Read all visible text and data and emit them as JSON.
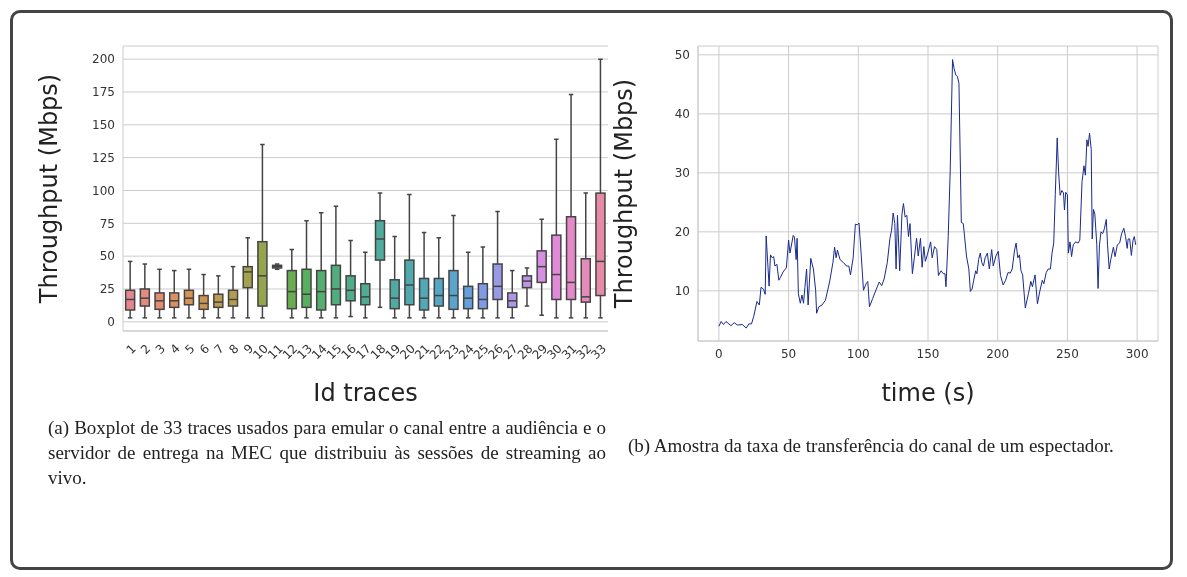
{
  "chart_data": [
    {
      "type": "box",
      "xlabel": "Id traces",
      "ylabel": "Throughput (Mbps)",
      "categories": [
        "1",
        "2",
        "3",
        "4",
        "5",
        "6",
        "7",
        "8",
        "9",
        "10",
        "11",
        "12",
        "13",
        "14",
        "15",
        "16",
        "17",
        "18",
        "19",
        "20",
        "21",
        "22",
        "23",
        "24",
        "25",
        "26",
        "27",
        "28",
        "29",
        "30",
        "31",
        "32",
        "33"
      ],
      "colors": [
        "#e5868f",
        "#e48a7e",
        "#e38c70",
        "#dc8f5f",
        "#d79356",
        "#cc9651",
        "#c09a50",
        "#b39e4f",
        "#a4a24e",
        "#94a54e",
        "#84a94f",
        "#6aad51",
        "#58af5d",
        "#54ae6e",
        "#52ad7c",
        "#50ad88",
        "#4fac92",
        "#4fab9b",
        "#4faaa4",
        "#50a9ad",
        "#52a8b7",
        "#55a6c2",
        "#5aa4ce",
        "#66a0dc",
        "#7f9ce3",
        "#999ae6",
        "#ad98e7",
        "#c095e6",
        "#d590e2",
        "#e18ad8",
        "#e589c9",
        "#e68aba",
        "#e68aa8"
      ],
      "boxes": [
        {
          "low": 3,
          "q1": 9,
          "median": 17,
          "q3": 24,
          "high": 46
        },
        {
          "low": 3,
          "q1": 12,
          "median": 18,
          "q3": 25,
          "high": 44
        },
        {
          "low": 3,
          "q1": 9.5,
          "median": 16,
          "q3": 22,
          "high": 40
        },
        {
          "low": 3,
          "q1": 11,
          "median": 16,
          "q3": 22,
          "high": 39
        },
        {
          "low": 3,
          "q1": 13,
          "median": 18,
          "q3": 24,
          "high": 40
        },
        {
          "low": 3,
          "q1": 9.5,
          "median": 14,
          "q3": 20,
          "high": 36
        },
        {
          "low": 3,
          "q1": 11,
          "median": 15,
          "q3": 21,
          "high": 35
        },
        {
          "low": 3,
          "q1": 12,
          "median": 17,
          "q3": 24,
          "high": 42
        },
        {
          "low": 3,
          "q1": 26,
          "median": 38,
          "q3": 42,
          "high": 64
        },
        {
          "low": 3,
          "q1": 12,
          "median": 35,
          "q3": 61,
          "high": 135
        },
        {
          "low": 40,
          "q1": 41,
          "median": 42,
          "q3": 43,
          "high": 44
        },
        {
          "low": 3,
          "q1": 10,
          "median": 23,
          "q3": 39,
          "high": 55
        },
        {
          "low": 3,
          "q1": 11,
          "median": 21,
          "q3": 40,
          "high": 77
        },
        {
          "low": 3,
          "q1": 9,
          "median": 23,
          "q3": 39,
          "high": 83
        },
        {
          "low": 3,
          "q1": 13,
          "median": 25,
          "q3": 43,
          "high": 88
        },
        {
          "low": 4,
          "q1": 16,
          "median": 24,
          "q3": 35,
          "high": 62
        },
        {
          "low": 3,
          "q1": 13,
          "median": 19,
          "q3": 29,
          "high": 53
        },
        {
          "low": 11,
          "q1": 47,
          "median": 63,
          "q3": 77,
          "high": 98
        },
        {
          "low": 3,
          "q1": 10,
          "median": 18,
          "q3": 32,
          "high": 65
        },
        {
          "low": 3,
          "q1": 13,
          "median": 28,
          "q3": 47,
          "high": 97
        },
        {
          "low": 3,
          "q1": 9,
          "median": 18,
          "q3": 33,
          "high": 68
        },
        {
          "low": 3,
          "q1": 12,
          "median": 20,
          "q3": 33,
          "high": 64
        },
        {
          "low": 3,
          "q1": 9.5,
          "median": 20,
          "q3": 39,
          "high": 81
        },
        {
          "low": 3,
          "q1": 10,
          "median": 18,
          "q3": 27,
          "high": 53
        },
        {
          "low": 3,
          "q1": 10,
          "median": 17,
          "q3": 29,
          "high": 57
        },
        {
          "low": 3,
          "q1": 17,
          "median": 27,
          "q3": 44,
          "high": 84
        },
        {
          "low": 3,
          "q1": 11,
          "median": 16,
          "q3": 22,
          "high": 39
        },
        {
          "low": 12,
          "q1": 26,
          "median": 31,
          "q3": 35,
          "high": 41
        },
        {
          "low": 5,
          "q1": 30,
          "median": 42,
          "q3": 54,
          "high": 78
        },
        {
          "low": 3,
          "q1": 17,
          "median": 36,
          "q3": 66,
          "high": 139
        },
        {
          "low": 3,
          "q1": 17,
          "median": 30,
          "q3": 80,
          "high": 173
        },
        {
          "low": 3,
          "q1": 15,
          "median": 19,
          "q3": 48,
          "high": 98
        },
        {
          "low": 3,
          "q1": 20,
          "median": 46,
          "q3": 98,
          "high": 200
        }
      ],
      "ylim": [
        -7,
        210
      ],
      "yticks": [
        0,
        25,
        50,
        75,
        100,
        125,
        150,
        175,
        200
      ],
      "grid": "y",
      "annotations": [
        "(a) Boxplot de 33 traces usados para emular o canal entre a audiência e o servidor de entrega na MEC que distribuiu às sessões de streaming ao vivo."
      ]
    },
    {
      "type": "line",
      "xlabel": "time (s)",
      "ylabel": "Throughput (Mbps)",
      "color": "#1a2a8c",
      "x": [
        0,
        1.6,
        3.3,
        5.1,
        8.6,
        11,
        13.3,
        16.8,
        19.6,
        21.5,
        23.4,
        25,
        27.3,
        29,
        30.2,
        32,
        33.2,
        33.9,
        36,
        37,
        38.3,
        39.3,
        40.2,
        41.6,
        43,
        44.2,
        46,
        48.4,
        50,
        51,
        53.3,
        54.2,
        55.4,
        56.1,
        57,
        58.4,
        59.6,
        60.7,
        61.7,
        62.9,
        64,
        65.9,
        67.8,
        69.4,
        70.1,
        71.7,
        74,
        76.4,
        79.4,
        81.8,
        83,
        84.1,
        85,
        86.9,
        89.3,
        91.6,
        93.2,
        94.4,
        96.3,
        97.9,
        99.3,
        100.5,
        102.1,
        103.7,
        105.6,
        106.8,
        108,
        110.3,
        112.1,
        115,
        116.8,
        118.5,
        120.8,
        122.7,
        123.9,
        125,
        126.2,
        127.1,
        128.1,
        129.7,
        131.3,
        132.4,
        133.6,
        134.8,
        136,
        137.1,
        138.8,
        140.2,
        141.8,
        143,
        144.6,
        145.8,
        147,
        148.1,
        149.5,
        151.9,
        153,
        154.7,
        156.3,
        157.5,
        159.4,
        161,
        162.2,
        162.9,
        164.5,
        165.9,
        167.6,
        168.7,
        169.9,
        171.1,
        172.2,
        173.9,
        175.3,
        176.2,
        177.6,
        179.3,
        180.4,
        181.6,
        182.8,
        184.2,
        185.1,
        186.3,
        187.5,
        188.6,
        189.8,
        191,
        192.6,
        194,
        195.7,
        196.8,
        198.7,
        200.4,
        202,
        203.9,
        205.7,
        207.4,
        209,
        210.4,
        212.1,
        213.2,
        214.4,
        215.6,
        216.7,
        217.9,
        219.8,
        222.1,
        223.8,
        224.9,
        226.8,
        228.5,
        230.1,
        232,
        233.1,
        234.8,
        236.2,
        237.8,
        239,
        240.2,
        241.3,
        242.7,
        243.7,
        244.8,
        246,
        247.2,
        247.9,
        248.8,
        250,
        250.7,
        251.9,
        253,
        254.2,
        255.9,
        257.7,
        258.9,
        260.5,
        261.9,
        262.9,
        264,
        264.8,
        265.9,
        267.1,
        267.8,
        268.7,
        269.7,
        271.1,
        272,
        273,
        274.1,
        275.3,
        276.5,
        277.9,
        278.8,
        280,
        281.1,
        283,
        284.2,
        285.8,
        287.5,
        288.9,
        290.5,
        291.7,
        292.9,
        293.6,
        294.7,
        295.9,
        297.1,
        298,
        299
      ],
      "values": [
        4,
        4.8,
        4.3,
        4.8,
        4.1,
        4.6,
        4.2,
        4.3,
        3.7,
        4.4,
        4.4,
        5.7,
        8.2,
        7.6,
        10.6,
        10.3,
        9.4,
        19.3,
        10.8,
        16.1,
        15.6,
        15.8,
        14.2,
        14.5,
        11.8,
        12.3,
        13.2,
        13.9,
        18.6,
        16.4,
        19.4,
        19.1,
        15.3,
        18.9,
        9.5,
        7.9,
        9.3,
        7.9,
        10.6,
        13.7,
        7.6,
        15.5,
        13.7,
        10.1,
        6.2,
        7.3,
        7.6,
        8.4,
        11.5,
        14.8,
        17.4,
        15.6,
        16.9,
        15.3,
        14.8,
        14.2,
        14.2,
        12.7,
        15.6,
        21.3,
        21.2,
        21.5,
        16.1,
        10.1,
        11.2,
        11.6,
        7.3,
        8.7,
        9.8,
        11.5,
        10.9,
        12,
        14.8,
        18.9,
        20.3,
        23.2,
        21.4,
        13.7,
        22.8,
        13.4,
        23,
        24.8,
        22.5,
        22.8,
        19.2,
        21.4,
        12.9,
        15.6,
        18.9,
        15.9,
        18.9,
        14,
        17.5,
        15,
        16.1,
        18.3,
        15.6,
        17.5,
        17,
        12.6,
        13.4,
        12.9,
        12.9,
        10.7,
        19.2,
        30.1,
        49.2,
        47.7,
        46.6,
        46.3,
        45.2,
        21.6,
        21.4,
        19.3,
        15.9,
        13.7,
        9.9,
        10.3,
        11.8,
        13.4,
        12.9,
        15.3,
        16.4,
        14.8,
        14.2,
        15.6,
        16.4,
        13.7,
        17,
        14.2,
        15.9,
        16.7,
        12.6,
        11,
        11.8,
        13.1,
        13,
        13.7,
        16.9,
        18.1,
        15.6,
        16.1,
        13.4,
        12.7,
        7.1,
        9.6,
        11.6,
        10.7,
        12.7,
        7.8,
        9.8,
        11.8,
        11.2,
        13.1,
        13.7,
        13.7,
        16.4,
        18.1,
        26.3,
        35.9,
        30.1,
        26.2,
        27,
        26.6,
        23.7,
        26.7,
        26.3,
        16.4,
        18.3,
        15.8,
        17.8,
        18.3,
        18.1,
        18.6,
        28.5,
        31.2,
        29.6,
        35.6,
        34.5,
        36.7,
        34,
        18.8,
        23.8,
        23,
        17.8,
        10.4,
        17.8,
        20,
        19.7,
        20.5,
        22.1,
        17.8,
        13.7,
        15.3,
        17.4,
        15.8,
        17.8,
        18.1,
        19.7,
        20.6,
        19.2,
        17.2,
        18.8,
        18.8,
        16,
        18.6,
        19.2,
        17.8
      ],
      "xlim": [
        -15,
        315
      ],
      "xticks": [
        0,
        50,
        100,
        150,
        200,
        250,
        300
      ],
      "ylim": [
        1.5,
        51.5
      ],
      "yticks": [
        10,
        20,
        30,
        40,
        50
      ],
      "grid": true,
      "annotations": [
        "(b) Amostra da taxa de transferência do canal de um espectador."
      ]
    }
  ]
}
